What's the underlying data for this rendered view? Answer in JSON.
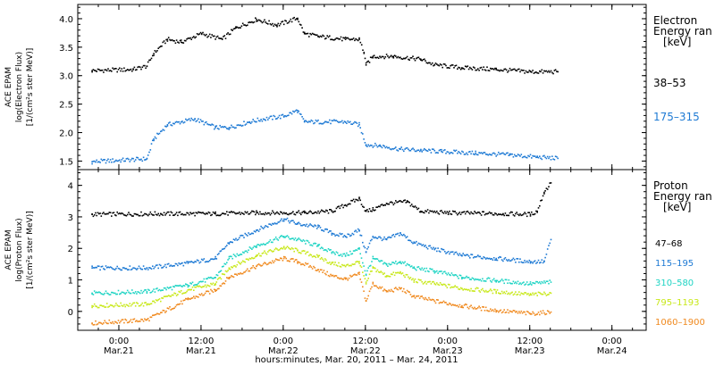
{
  "chart_data": [
    {
      "type": "scatter",
      "ylabel_lines": [
        "ACE EPAM",
        "log(Electron Flux)",
        "[1/(cm²s ster MeV)]"
      ],
      "ylim": [
        1.35,
        4.25
      ],
      "yticks": [
        "1.5",
        "2.0",
        "2.5",
        "3.0",
        "3.5",
        "4.0"
      ],
      "legend_title": [
        "Electron",
        "Energy ran",
        "[keV]"
      ],
      "series": [
        {
          "name": "38–53",
          "color": "#000000",
          "points": [
            [
              -4,
              3.1
            ],
            [
              2,
              3.12
            ],
            [
              4,
              3.18
            ],
            [
              5,
              3.4
            ],
            [
              7,
              3.65
            ],
            [
              9,
              3.6
            ],
            [
              12,
              3.75
            ],
            [
              15,
              3.65
            ],
            [
              17,
              3.85
            ],
            [
              20,
              4.0
            ],
            [
              23,
              3.9
            ],
            [
              26,
              4.02
            ],
            [
              27,
              3.75
            ],
            [
              29,
              3.7
            ],
            [
              33,
              3.65
            ],
            [
              35,
              3.65
            ],
            [
              35.7,
              3.42
            ],
            [
              36,
              3.2
            ],
            [
              37,
              3.35
            ],
            [
              40,
              3.35
            ],
            [
              44,
              3.3
            ],
            [
              46,
              3.2
            ],
            [
              50,
              3.15
            ],
            [
              55,
              3.12
            ],
            [
              60,
              3.08
            ],
            [
              64,
              3.08
            ]
          ]
        },
        {
          "name": "175–315",
          "color": "#1e7ad4",
          "points": [
            [
              -4,
              1.5
            ],
            [
              4,
              1.55
            ],
            [
              5,
              1.9
            ],
            [
              7,
              2.15
            ],
            [
              9,
              2.2
            ],
            [
              11,
              2.25
            ],
            [
              14,
              2.1
            ],
            [
              16,
              2.1
            ],
            [
              19,
              2.2
            ],
            [
              21,
              2.25
            ],
            [
              24,
              2.3
            ],
            [
              26,
              2.4
            ],
            [
              27,
              2.2
            ],
            [
              30,
              2.2
            ],
            [
              33,
              2.2
            ],
            [
              35,
              2.15
            ],
            [
              36,
              1.8
            ],
            [
              38,
              1.78
            ],
            [
              41,
              1.72
            ],
            [
              44,
              1.7
            ],
            [
              47,
              1.68
            ],
            [
              52,
              1.65
            ],
            [
              57,
              1.62
            ],
            [
              61,
              1.58
            ],
            [
              64,
              1.56
            ]
          ]
        }
      ]
    },
    {
      "type": "scatter",
      "ylabel_lines": [
        "ACE EPAM",
        "log(Proton Flux)",
        "[1/(cm²s ster MeV)]"
      ],
      "ylim": [
        -0.6,
        4.5
      ],
      "yticks": [
        "0",
        "1",
        "2",
        "3",
        "4"
      ],
      "legend_title": [
        "Proton",
        "Energy ran",
        "[keV]"
      ],
      "series": [
        {
          "name": "47–68",
          "color": "#000000",
          "points": [
            [
              -4,
              3.1
            ],
            [
              6,
              3.12
            ],
            [
              14,
              3.12
            ],
            [
              20,
              3.15
            ],
            [
              27,
              3.15
            ],
            [
              31,
              3.2
            ],
            [
              33,
              3.4
            ],
            [
              35,
              3.6
            ],
            [
              36,
              3.2
            ],
            [
              37,
              3.25
            ],
            [
              39,
              3.45
            ],
            [
              42,
              3.5
            ],
            [
              44,
              3.2
            ],
            [
              48,
              3.15
            ],
            [
              56,
              3.12
            ],
            [
              60,
              3.1
            ],
            [
              61,
              3.2
            ],
            [
              62,
              3.8
            ],
            [
              63,
              4.1
            ]
          ]
        },
        {
          "name": "115–195",
          "color": "#1e7ad4",
          "points": [
            [
              -4,
              1.4
            ],
            [
              4,
              1.4
            ],
            [
              10,
              1.55
            ],
            [
              14,
              1.7
            ],
            [
              16,
              2.2
            ],
            [
              20,
              2.6
            ],
            [
              24,
              2.95
            ],
            [
              26,
              2.8
            ],
            [
              29,
              2.7
            ],
            [
              31,
              2.5
            ],
            [
              33,
              2.4
            ],
            [
              35,
              2.6
            ],
            [
              36,
              1.9
            ],
            [
              37,
              2.4
            ],
            [
              39,
              2.3
            ],
            [
              41,
              2.5
            ],
            [
              43,
              2.2
            ],
            [
              46,
              2.0
            ],
            [
              50,
              1.8
            ],
            [
              55,
              1.7
            ],
            [
              60,
              1.6
            ],
            [
              62,
              1.6
            ],
            [
              63,
              2.3
            ]
          ]
        },
        {
          "name": "310–580",
          "color": "#1fd4c4",
          "points": [
            [
              -4,
              0.6
            ],
            [
              4,
              0.65
            ],
            [
              10,
              0.85
            ],
            [
              14,
              1.1
            ],
            [
              16,
              1.7
            ],
            [
              20,
              2.1
            ],
            [
              24,
              2.4
            ],
            [
              26,
              2.3
            ],
            [
              29,
              2.1
            ],
            [
              31,
              1.9
            ],
            [
              33,
              1.8
            ],
            [
              35,
              2.0
            ],
            [
              36,
              1.2
            ],
            [
              37,
              1.7
            ],
            [
              39,
              1.5
            ],
            [
              41,
              1.6
            ],
            [
              43,
              1.4
            ],
            [
              46,
              1.3
            ],
            [
              50,
              1.1
            ],
            [
              55,
              1.0
            ],
            [
              60,
              0.9
            ],
            [
              63,
              0.95
            ]
          ]
        },
        {
          "name": "795–1193",
          "color": "#c8e81a",
          "points": [
            [
              -4,
              0.2
            ],
            [
              4,
              0.25
            ],
            [
              10,
              0.7
            ],
            [
              14,
              0.9
            ],
            [
              16,
              1.4
            ],
            [
              20,
              1.8
            ],
            [
              24,
              2.05
            ],
            [
              26,
              1.95
            ],
            [
              29,
              1.75
            ],
            [
              31,
              1.55
            ],
            [
              33,
              1.45
            ],
            [
              35,
              1.6
            ],
            [
              36,
              0.9
            ],
            [
              37,
              1.4
            ],
            [
              39,
              1.15
            ],
            [
              41,
              1.25
            ],
            [
              43,
              1.0
            ],
            [
              46,
              0.9
            ],
            [
              50,
              0.75
            ],
            [
              55,
              0.65
            ],
            [
              60,
              0.55
            ],
            [
              63,
              0.6
            ]
          ]
        },
        {
          "name": "1060–1900",
          "color": "#f08a20",
          "points": [
            [
              -4,
              -0.35
            ],
            [
              4,
              -0.25
            ],
            [
              10,
              0.4
            ],
            [
              14,
              0.7
            ],
            [
              16,
              1.1
            ],
            [
              20,
              1.45
            ],
            [
              24,
              1.7
            ],
            [
              26,
              1.6
            ],
            [
              29,
              1.35
            ],
            [
              31,
              1.15
            ],
            [
              33,
              1.05
            ],
            [
              35,
              1.2
            ],
            [
              36,
              0.35
            ],
            [
              37,
              0.9
            ],
            [
              39,
              0.65
            ],
            [
              41,
              0.75
            ],
            [
              43,
              0.5
            ],
            [
              46,
              0.35
            ],
            [
              50,
              0.2
            ],
            [
              55,
              0.05
            ],
            [
              60,
              -0.05
            ],
            [
              63,
              0.0
            ]
          ]
        }
      ]
    }
  ],
  "xaxis": {
    "xlim": [
      -6,
      77
    ],
    "ticks": [
      {
        "t": 0,
        "time": "0:00",
        "date": "Mar.21"
      },
      {
        "t": 12,
        "time": "12:00",
        "date": "Mar.21"
      },
      {
        "t": 24,
        "time": "0:00",
        "date": "Mar.22"
      },
      {
        "t": 36,
        "time": "12:00",
        "date": "Mar.22"
      },
      {
        "t": 48,
        "time": "0:00",
        "date": "Mar.23"
      },
      {
        "t": 60,
        "time": "12:00",
        "date": "Mar.23"
      },
      {
        "t": 72,
        "time": "0:00",
        "date": "Mar.24"
      }
    ],
    "label": "hours:minutes, Mar. 20, 2011 – Mar. 24, 2011"
  }
}
